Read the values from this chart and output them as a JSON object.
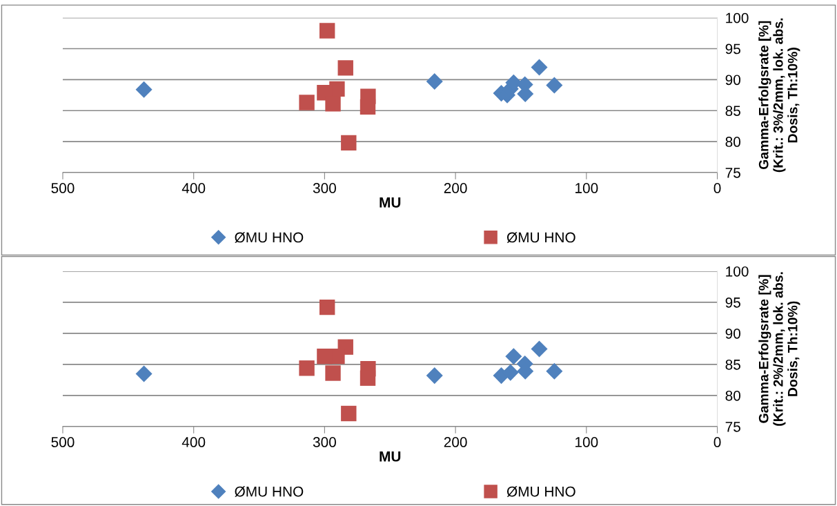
{
  "chart_data": [
    {
      "type": "scatter",
      "xlabel": "MU",
      "ylabel": "Gamma-Erfolgsrate [%]\n(Krit.: 3%/2mm, lok. abs.\nDosis, Th:10%)",
      "xlim": [
        500,
        0
      ],
      "xticks": [
        500,
        400,
        300,
        200,
        100,
        0
      ],
      "ylim": [
        75,
        100
      ],
      "yticks": [
        75,
        80,
        85,
        90,
        95,
        100
      ],
      "grid": "y",
      "legend": "bottom",
      "series": [
        {
          "name": "ØMU HNO",
          "color": "#4f81bd",
          "marker": "diamond",
          "x": [
            438,
            216,
            165,
            160.5,
            158,
            155.6,
            147,
            146.7,
            136,
            124.5
          ],
          "values": [
            88.4,
            89.7,
            87.8,
            87.5,
            88.5,
            89.5,
            89.2,
            87.7,
            92.0,
            89.1
          ]
        },
        {
          "name": "ØMU HNO",
          "color": "#c0504d",
          "marker": "square",
          "x": [
            298,
            284,
            290.5,
            300,
            313.6,
            293.6,
            266.8,
            267,
            281.6
          ],
          "values": [
            97.9,
            91.9,
            88.5,
            87.9,
            86.3,
            86.1,
            87.3,
            85.6,
            79.8
          ]
        }
      ]
    },
    {
      "type": "scatter",
      "xlabel": "MU",
      "ylabel": "Gamma-Erfolgsrate [%]\n(Krit.: 2%/2mm, lok. abs.\nDosis, Th:10%)",
      "xlim": [
        500,
        0
      ],
      "xticks": [
        500,
        400,
        300,
        200,
        100,
        0
      ],
      "ylim": [
        75,
        100
      ],
      "yticks": [
        75,
        80,
        85,
        90,
        95,
        100
      ],
      "grid": "y",
      "legend": "bottom",
      "series": [
        {
          "name": "ØMU HNO",
          "color": "#4f81bd",
          "marker": "diamond",
          "x": [
            438,
            216,
            165,
            158,
            155.6,
            147,
            146.7,
            136,
            124.5
          ],
          "values": [
            83.5,
            83.2,
            83.2,
            83.7,
            86.3,
            85.1,
            83.9,
            87.5,
            83.9
          ]
        },
        {
          "name": "ØMU HNO",
          "color": "#c0504d",
          "marker": "square",
          "x": [
            298,
            284,
            290.5,
            300,
            313.6,
            293.6,
            266.8,
            267,
            281.6
          ],
          "values": [
            94.2,
            87.8,
            86.3,
            86.3,
            84.4,
            83.6,
            84.3,
            82.8,
            77.1
          ]
        }
      ]
    }
  ]
}
